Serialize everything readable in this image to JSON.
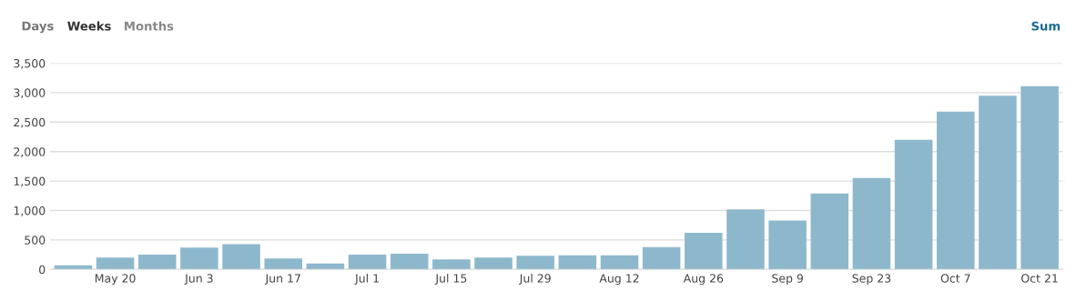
{
  "chart_data": {
    "type": "bar",
    "categories": [
      null,
      "May 20",
      null,
      "Jun 3",
      null,
      "Jun 17",
      null,
      "Jul 1",
      null,
      "Jul 15",
      null,
      "Jul 29",
      null,
      "Aug 12",
      null,
      "Aug 26",
      null,
      "Sep 9",
      null,
      "Sep 23",
      null,
      "Oct 7",
      null,
      "Oct 21"
    ],
    "values": [
      70,
      200,
      250,
      370,
      430,
      185,
      100,
      250,
      265,
      170,
      200,
      230,
      240,
      240,
      380,
      620,
      1020,
      830,
      1290,
      1550,
      2200,
      2680,
      2950,
      3110
    ],
    "color": "#8db8cc",
    "ylim": [
      0,
      3500
    ],
    "yticks": [
      {
        "value": 0,
        "label": "0"
      },
      {
        "value": 500,
        "label": "500"
      },
      {
        "value": 1000,
        "label": "1,000"
      },
      {
        "value": 1500,
        "label": "1,500"
      },
      {
        "value": 2000,
        "label": "2,000"
      },
      {
        "value": 2500,
        "label": "2,500"
      },
      {
        "value": 3000,
        "label": "3,000"
      },
      {
        "value": 3500,
        "label": "3,500"
      }
    ],
    "grid": "y",
    "annotations": [
      "Days",
      "Weeks",
      "Months",
      "Sum"
    ]
  }
}
